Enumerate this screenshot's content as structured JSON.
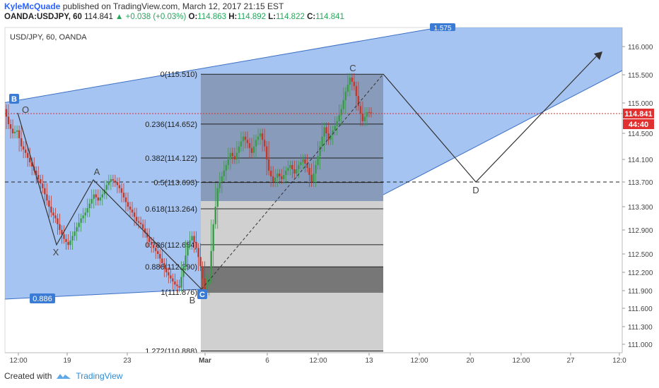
{
  "header": {
    "author": "KyleMcQuade",
    "published_text": "published on TradingView.com, March 12, 2017 21:15 EST",
    "symbol": "OANDA:USDJPY, 60",
    "last": "114.841",
    "change": "+0.038 (+0.03%)",
    "open": "114.863",
    "high": "114.892",
    "low": "114.822",
    "close": "114.841"
  },
  "pane_title": "USD/JPY, 60, OANDA",
  "price_label": "114.841",
  "countdown_label": "44:40",
  "footer": {
    "created_with": "Created with",
    "brand": "TradingView"
  },
  "colors": {
    "channel_fill": "#6fa0e8",
    "box_dark": "#4f6fa8",
    "grey_box": "#cfcfcf",
    "dark_box": "#777777",
    "price_line": "#e03030",
    "label_blue": "#3a7bd5"
  },
  "chart_data": {
    "type": "candlestick",
    "y_ticks": [
      "116.000",
      "115.500",
      "115.000",
      "114.500",
      "114.100",
      "113.700",
      "113.300",
      "112.900",
      "112.500",
      "112.200",
      "111.900",
      "111.600",
      "111.300",
      "111.000"
    ],
    "x_ticks": [
      "12:00",
      "19",
      "23",
      "Mar",
      "6",
      "12:00",
      "13",
      "12:00",
      "20",
      "12:00",
      "27",
      "12:0"
    ],
    "fib_levels": [
      {
        "label": "0(115.510)",
        "value": 115.51
      },
      {
        "label": "0.236(114.652)",
        "value": 114.652
      },
      {
        "label": "0.382(114.122)",
        "value": 114.122
      },
      {
        "label": "0.5(113.693)",
        "value": 113.693
      },
      {
        "label": "0.618(113.264)",
        "value": 113.264
      },
      {
        "label": "0.786(112.654)",
        "value": 112.654
      },
      {
        "label": "0.886(112.290)",
        "value": 112.29
      },
      {
        "label": "1(111.876)",
        "value": 111.876
      },
      {
        "label": "1.272(110.888)",
        "value": 110.888
      }
    ],
    "pattern_points": [
      {
        "label": "B",
        "value": 114.9,
        "boxed": true
      },
      {
        "label": "O",
        "value": 114.9
      },
      {
        "label": "X",
        "value": 112.65
      },
      {
        "label": "A",
        "value": 113.75
      },
      {
        "label": "B",
        "value": 111.85
      },
      {
        "label": "C",
        "value": 111.85,
        "boxed": true
      },
      {
        "label": "C",
        "value": 115.5
      },
      {
        "label": "D",
        "value": 113.7
      }
    ],
    "channel_labels": [
      "0.886",
      "1.575"
    ],
    "current_price": 114.841,
    "dashed_level": 113.693,
    "candles_close": [
      114.65,
      114.5,
      114.55,
      114.3,
      114.2,
      114.05,
      113.9,
      113.75,
      113.6,
      113.4,
      113.2,
      113.1,
      112.9,
      112.75,
      112.65,
      112.8,
      112.95,
      113.1,
      113.2,
      113.35,
      113.5,
      113.4,
      113.5,
      113.65,
      113.75,
      113.7,
      113.6,
      113.45,
      113.3,
      113.2,
      113.05,
      113.0,
      112.85,
      112.7,
      112.6,
      112.5,
      112.35,
      112.2,
      112.1,
      112.0,
      111.95,
      112.3,
      112.65,
      112.8,
      112.6,
      112.3,
      111.9,
      112.1,
      113.0,
      113.6,
      113.8,
      114.0,
      114.2,
      114.1,
      114.3,
      114.45,
      114.35,
      114.2,
      114.4,
      114.5,
      114.3,
      113.9,
      113.7,
      113.85,
      113.75,
      113.9,
      114.0,
      113.85,
      114.0,
      114.1,
      113.95,
      113.7,
      114.0,
      114.3,
      114.6,
      114.4,
      114.55,
      114.7,
      114.9,
      115.2,
      115.45,
      115.3,
      114.95,
      114.7,
      114.85,
      114.84
    ]
  }
}
